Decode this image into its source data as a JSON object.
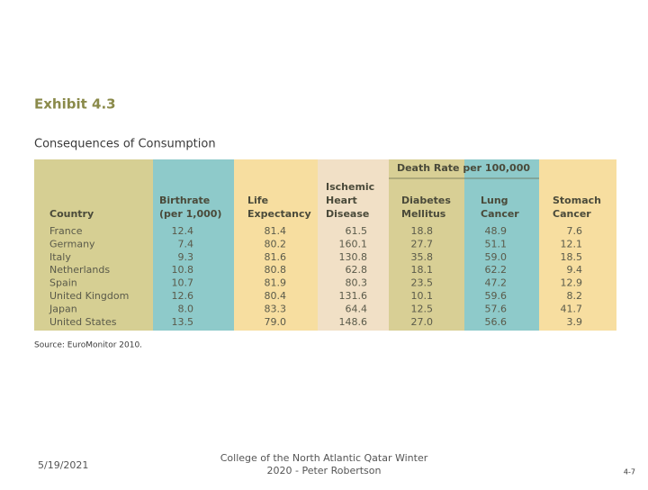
{
  "exhibit": {
    "label": "Exhibit 4.3",
    "title": "Consequences of Consumption"
  },
  "table": {
    "group_header": "Death Rate per 100,000",
    "columns": [
      [
        "Country"
      ],
      [
        "Birthrate",
        "(per 1,000)"
      ],
      [
        "Life",
        "Expectancy"
      ],
      [
        "Ischemic",
        "Heart",
        "Disease"
      ],
      [
        "Diabetes",
        "Mellitus"
      ],
      [
        "Lung",
        "Cancer"
      ],
      [
        "Stomach",
        "Cancer"
      ]
    ],
    "rows": [
      [
        "France",
        "12.4",
        "81.4",
        "61.5",
        "18.8",
        "48.9",
        "7.6"
      ],
      [
        "Germany",
        "7.4",
        "80.2",
        "160.1",
        "27.7",
        "51.1",
        "12.1"
      ],
      [
        "Italy",
        "9.3",
        "81.6",
        "130.8",
        "35.8",
        "59.0",
        "18.5"
      ],
      [
        "Netherlands",
        "10.8",
        "80.8",
        "62.8",
        "18.1",
        "62.2",
        "9.4"
      ],
      [
        "Spain",
        "10.7",
        "81.9",
        "80.3",
        "23.5",
        "47.2",
        "12.9"
      ],
      [
        "United Kingdom",
        "12.6",
        "80.4",
        "131.6",
        "10.1",
        "59.6",
        "8.2"
      ],
      [
        "Japan",
        "8.0",
        "83.3",
        "64.4",
        "12.5",
        "57.6",
        "41.7"
      ],
      [
        "United States",
        "13.5",
        "79.0",
        "148.6",
        "27.0",
        "56.6",
        "3.9"
      ]
    ]
  },
  "source": "Source: EuroMonitor 2010.",
  "footer": {
    "date": "5/19/2021",
    "center": [
      "College of the North Atlantic Qatar Winter",
      "2020 - Peter Robertson"
    ],
    "page": "4-7"
  }
}
